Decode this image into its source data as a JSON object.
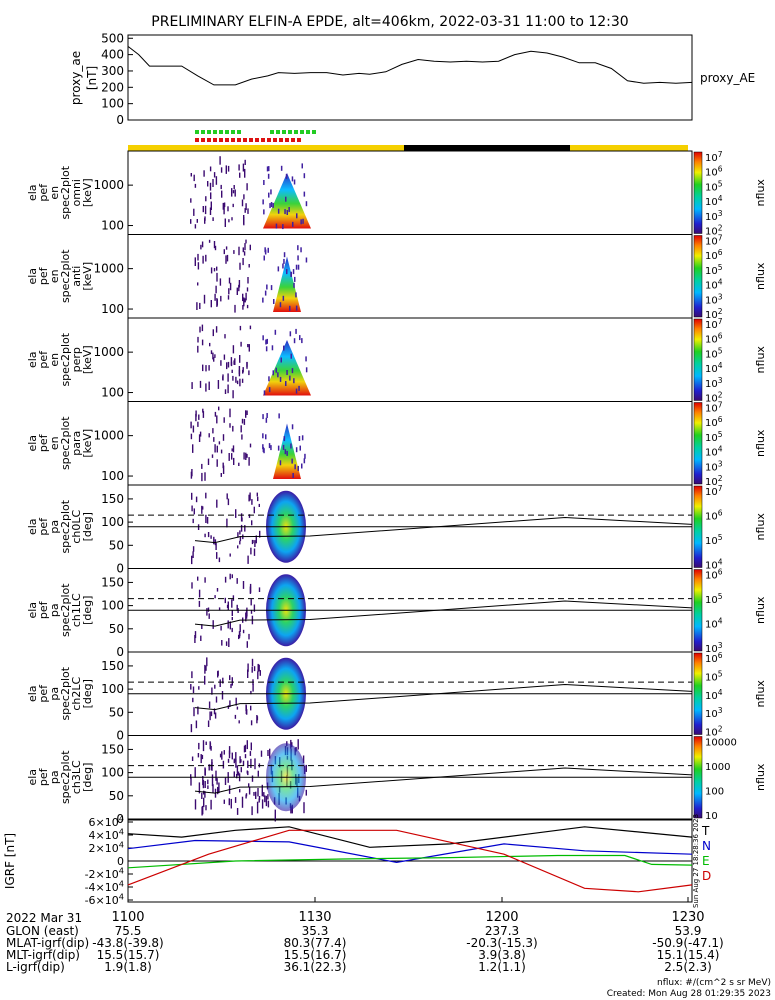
{
  "title": "PRELIMINARY ELFIN-A EPDE, alt=406km, 2022-03-31 11:00 to 12:30",
  "chart_data": [
    {
      "type": "line",
      "id": "proxy_ae",
      "ylabel": "proxy_ae [nT]",
      "legend": "proxy_AE",
      "yticks": [
        "0",
        "100",
        "200",
        "300",
        "400",
        "500"
      ],
      "ylim": [
        0,
        520
      ],
      "x_minutes": [
        0,
        4,
        8,
        14,
        20,
        26,
        32,
        36,
        40,
        46,
        52,
        56,
        62,
        68,
        74,
        80,
        86,
        90,
        96,
        102,
        108,
        114,
        120,
        126,
        132,
        138,
        144,
        150,
        156,
        162,
        168,
        174,
        180,
        186,
        192,
        198,
        204,
        210
      ],
      "values": [
        450,
        400,
        330,
        330,
        330,
        270,
        215,
        215,
        215,
        250,
        270,
        290,
        285,
        290,
        290,
        275,
        285,
        280,
        295,
        340,
        370,
        360,
        355,
        360,
        355,
        360,
        400,
        420,
        410,
        385,
        350,
        350,
        315,
        240,
        225,
        230,
        225,
        230
      ]
    },
    {
      "type": "heatmap",
      "id": "spectrograms",
      "panels": [
        {
          "label": [
            "ela",
            "pef",
            "en",
            "spec2plot",
            "omni",
            "[keV]"
          ],
          "yticks": [
            "100",
            "1000"
          ],
          "cbar_ticks": [
            "10^2",
            "10^3",
            "10^4",
            "10^5",
            "10^6",
            "10^7"
          ],
          "cbar_label": "nflux"
        },
        {
          "label": [
            "ela",
            "pef",
            "en",
            "spec2plot",
            "anti",
            "[keV]"
          ],
          "yticks": [
            "100",
            "1000"
          ],
          "cbar_ticks": [
            "10^2",
            "10^3",
            "10^4",
            "10^5",
            "10^6",
            "10^7"
          ],
          "cbar_label": "nflux"
        },
        {
          "label": [
            "ela",
            "pef",
            "en",
            "spec2plot",
            "perp",
            "[keV]"
          ],
          "yticks": [
            "100",
            "1000"
          ],
          "cbar_ticks": [
            "10^2",
            "10^3",
            "10^4",
            "10^5",
            "10^6",
            "10^7"
          ],
          "cbar_label": "nflux"
        },
        {
          "label": [
            "ela",
            "pef",
            "en",
            "spec2plot",
            "para",
            "[keV]"
          ],
          "yticks": [
            "100",
            "1000"
          ],
          "cbar_ticks": [
            "10^2",
            "10^3",
            "10^4",
            "10^5",
            "10^6",
            "10^7"
          ],
          "cbar_label": "nflux"
        },
        {
          "label": [
            "ela",
            "pef",
            "pa",
            "spec2plot",
            "ch0LC",
            "[deg]"
          ],
          "yticks": [
            "0",
            "50",
            "100",
            "150"
          ],
          "cbar_ticks": [
            "10^4",
            "10^5",
            "10^6",
            "10^7"
          ],
          "cbar_label": "nflux"
        },
        {
          "label": [
            "ela",
            "pef",
            "pa",
            "spec2plot",
            "ch1LC",
            "[deg]"
          ],
          "yticks": [
            "0",
            "50",
            "100",
            "150"
          ],
          "cbar_ticks": [
            "10^3",
            "10^4",
            "10^5",
            "10^6"
          ],
          "cbar_label": "nflux"
        },
        {
          "label": [
            "ela",
            "pef",
            "pa",
            "spec2plot",
            "ch2LC",
            "[deg]"
          ],
          "yticks": [
            "0",
            "50",
            "100",
            "150"
          ],
          "cbar_ticks": [
            "10^2",
            "10^3",
            "10^4",
            "10^5",
            "10^6"
          ],
          "cbar_label": "nflux"
        },
        {
          "label": [
            "ela",
            "pef",
            "pa",
            "spec2plot",
            "ch3LC",
            "[deg]"
          ],
          "yticks": [
            "0",
            "50",
            "100",
            "150"
          ],
          "cbar_ticks": [
            "10",
            "100",
            "1000",
            "10000"
          ],
          "cbar_label": "nflux"
        }
      ]
    },
    {
      "type": "line",
      "id": "igrf",
      "ylabel": "IGRF [nT]",
      "yticks": [
        "-6×10^4",
        "-4×10^4",
        "-2×10^4",
        "0",
        "2×10^4",
        "4×10^4",
        "6×10^4"
      ],
      "series": [
        {
          "name": "T",
          "color": "#000000"
        },
        {
          "name": "N",
          "color": "#0000cc"
        },
        {
          "name": "E",
          "color": "#00bb00"
        },
        {
          "name": "D",
          "color": "#cc0000"
        }
      ]
    }
  ],
  "xaxis": {
    "date": "2022 Mar 31",
    "ticks": [
      "1100",
      "1130",
      "1200",
      "1230"
    ]
  },
  "footer": [
    {
      "label": "GLON (east)",
      "values": [
        "75.5",
        "35.3",
        "237.3",
        "53.9"
      ]
    },
    {
      "label": "MLAT-igrf(dip)",
      "values": [
        "-43.8(-39.8)",
        "80.3(77.4)",
        "-20.3(-15.3)",
        "-50.9(-47.1)"
      ]
    },
    {
      "label": "MLT-igrf(dip)",
      "values": [
        "15.5(15.7)",
        "15.5(16.7)",
        "3.9(3.8)",
        "15.1(15.4)"
      ]
    },
    {
      "label": "L-igrf(dip)",
      "values": [
        "1.9(1.8)",
        "36.1(22.3)",
        "1.2(1.1)",
        "2.5(2.3)"
      ]
    }
  ],
  "notes": {
    "units": "nflux: #/(cm^2 s sr MeV)",
    "created": "Created: Mon Aug 28 01:29:35 2023",
    "side_stamp": "Sun Aug 27 18:28:36 2023"
  },
  "colors": {
    "sunlight": "#f5d000",
    "shadow": "#000000",
    "science_green": "#22cc22",
    "science_red": "#dd1111"
  }
}
